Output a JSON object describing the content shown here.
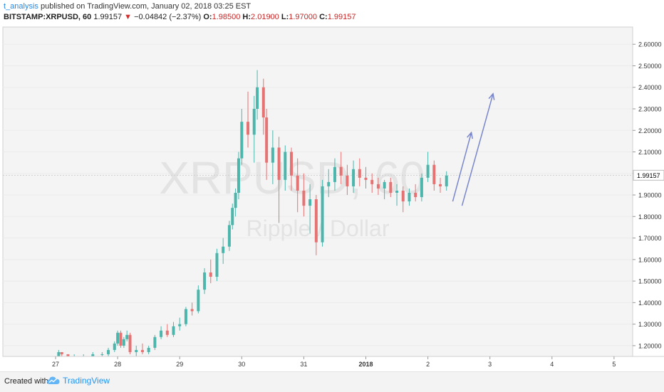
{
  "header": {
    "author": "t_analysis",
    "published": " published on TradingView.com, January 02, 2018 03:25 EST"
  },
  "ticker": {
    "symbol": "BITSTAMP:XRPUSD, 60",
    "last": "1.99157",
    "change": "−0.04842 (−2.37%)",
    "o_label": "O:",
    "o_value": "1.98500",
    "h_label": "H:",
    "h_value": "2.01900",
    "l_label": "L:",
    "l_value": "1.97000",
    "c_label": "C:",
    "c_value": "1.99157"
  },
  "footer": {
    "created_with": "Created with",
    "brand": "TradingView"
  },
  "colors": {
    "up": "#4db6ac",
    "down": "#e57373",
    "arrow": "#7986cb",
    "last_price_bg": "#ffffff"
  },
  "chart_data": {
    "type": "candlestick",
    "watermark_symbol": "XRPUSD, 60",
    "watermark_name": "Ripple / Dollar",
    "ylim": [
      1.15,
      2.68
    ],
    "y_ticks": [
      "1.20000",
      "1.30000",
      "1.40000",
      "1.50000",
      "1.60000",
      "1.70000",
      "1.80000",
      "1.90000",
      "2.00000",
      "2.10000",
      "2.20000",
      "2.30000",
      "2.40000",
      "2.50000",
      "2.60000"
    ],
    "last_price_label": "1.99157",
    "last_price": 1.99157,
    "x_ticks": [
      {
        "label": "27",
        "t": 0
      },
      {
        "label": "28",
        "t": 1
      },
      {
        "label": "29",
        "t": 2
      },
      {
        "label": "30",
        "t": 3
      },
      {
        "label": "31",
        "t": 4
      },
      {
        "label": "2018",
        "t": 5
      },
      {
        "label": "2",
        "t": 6
      },
      {
        "label": "3",
        "t": 7
      },
      {
        "label": "4",
        "t": 8
      },
      {
        "label": "5",
        "t": 9
      }
    ],
    "xlim": [
      -0.85,
      9.3
    ],
    "candles": [
      [
        0.05,
        1.15,
        1.18,
        1.14,
        1.17
      ],
      [
        0.1,
        1.17,
        1.17,
        1.15,
        1.16
      ],
      [
        0.2,
        1.16,
        1.16,
        1.13,
        1.14
      ],
      [
        0.3,
        1.14,
        1.16,
        1.13,
        1.15
      ],
      [
        0.45,
        1.15,
        1.16,
        1.14,
        1.15
      ],
      [
        0.6,
        1.15,
        1.17,
        1.14,
        1.16
      ],
      [
        0.75,
        1.16,
        1.17,
        1.15,
        1.16
      ],
      [
        0.85,
        1.16,
        1.19,
        1.15,
        1.18
      ],
      [
        0.95,
        1.18,
        1.22,
        1.17,
        1.21
      ],
      [
        1.0,
        1.21,
        1.27,
        1.2,
        1.26
      ],
      [
        1.05,
        1.26,
        1.27,
        1.19,
        1.2
      ],
      [
        1.1,
        1.2,
        1.24,
        1.19,
        1.23
      ],
      [
        1.15,
        1.23,
        1.27,
        1.22,
        1.25
      ],
      [
        1.2,
        1.25,
        1.26,
        1.16,
        1.17
      ],
      [
        1.3,
        1.17,
        1.2,
        1.15,
        1.18
      ],
      [
        1.4,
        1.18,
        1.21,
        1.16,
        1.17
      ],
      [
        1.5,
        1.17,
        1.2,
        1.16,
        1.19
      ],
      [
        1.6,
        1.19,
        1.25,
        1.18,
        1.24
      ],
      [
        1.7,
        1.24,
        1.29,
        1.23,
        1.27
      ],
      [
        1.8,
        1.27,
        1.3,
        1.24,
        1.25
      ],
      [
        1.9,
        1.25,
        1.31,
        1.24,
        1.29
      ],
      [
        2.0,
        1.29,
        1.33,
        1.27,
        1.3
      ],
      [
        2.1,
        1.3,
        1.38,
        1.29,
        1.37
      ],
      [
        2.2,
        1.37,
        1.4,
        1.34,
        1.36
      ],
      [
        2.3,
        1.36,
        1.48,
        1.35,
        1.46
      ],
      [
        2.4,
        1.46,
        1.56,
        1.44,
        1.54
      ],
      [
        2.5,
        1.54,
        1.6,
        1.49,
        1.52
      ],
      [
        2.6,
        1.52,
        1.65,
        1.5,
        1.63
      ],
      [
        2.7,
        1.63,
        1.7,
        1.58,
        1.66
      ],
      [
        2.8,
        1.66,
        1.78,
        1.64,
        1.76
      ],
      [
        2.85,
        1.76,
        1.86,
        1.74,
        1.84
      ],
      [
        2.9,
        1.84,
        1.93,
        1.8,
        1.91
      ],
      [
        2.95,
        1.91,
        2.1,
        1.88,
        2.07
      ],
      [
        3.0,
        2.07,
        2.3,
        2.04,
        2.24
      ],
      [
        3.1,
        2.24,
        2.38,
        2.12,
        2.18
      ],
      [
        3.2,
        2.18,
        2.36,
        2.05,
        2.3
      ],
      [
        3.25,
        2.3,
        2.48,
        2.25,
        2.4
      ],
      [
        3.35,
        2.4,
        2.44,
        2.18,
        2.26
      ],
      [
        3.4,
        2.26,
        2.3,
        1.97,
        2.05
      ],
      [
        3.5,
        2.05,
        2.2,
        1.95,
        2.12
      ],
      [
        3.6,
        2.12,
        2.17,
        1.77,
        1.97
      ],
      [
        3.7,
        1.97,
        2.13,
        1.92,
        2.1
      ],
      [
        3.8,
        2.1,
        2.12,
        1.92,
        1.99
      ],
      [
        3.9,
        1.99,
        2.07,
        1.82,
        1.92
      ],
      [
        4.0,
        1.92,
        2.0,
        1.8,
        1.85
      ],
      [
        4.1,
        1.85,
        1.95,
        1.72,
        1.88
      ],
      [
        4.2,
        1.88,
        1.9,
        1.62,
        1.68
      ],
      [
        4.3,
        1.68,
        1.97,
        1.66,
        1.94
      ],
      [
        4.4,
        1.94,
        2.02,
        1.89,
        1.96
      ],
      [
        4.5,
        1.96,
        2.07,
        1.92,
        2.03
      ],
      [
        4.6,
        2.03,
        2.1,
        1.95,
        1.99
      ],
      [
        4.7,
        1.99,
        2.04,
        1.9,
        1.94
      ],
      [
        4.8,
        1.94,
        2.06,
        1.91,
        2.02
      ],
      [
        4.9,
        2.02,
        2.07,
        1.94,
        1.98
      ],
      [
        5.0,
        1.98,
        2.03,
        1.93,
        1.97
      ],
      [
        5.1,
        1.97,
        2.0,
        1.91,
        1.95
      ],
      [
        5.2,
        1.95,
        1.98,
        1.9,
        1.93
      ],
      [
        5.3,
        1.93,
        1.97,
        1.88,
        1.96
      ],
      [
        5.4,
        1.96,
        1.98,
        1.89,
        1.91
      ],
      [
        5.5,
        1.91,
        1.95,
        1.85,
        1.92
      ],
      [
        5.6,
        1.92,
        1.94,
        1.82,
        1.87
      ],
      [
        5.7,
        1.87,
        1.93,
        1.85,
        1.91
      ],
      [
        5.8,
        1.91,
        1.95,
        1.87,
        1.89
      ],
      [
        5.9,
        1.89,
        2.0,
        1.87,
        1.98
      ],
      [
        6.0,
        1.98,
        2.1,
        1.96,
        2.04
      ],
      [
        6.1,
        2.04,
        2.06,
        1.92,
        1.95
      ],
      [
        6.2,
        1.95,
        1.98,
        1.91,
        1.94
      ],
      [
        6.3,
        1.94,
        2.01,
        1.92,
        1.99
      ]
    ],
    "annotations": [
      {
        "type": "arrow",
        "x0": 6.4,
        "y0": 1.87,
        "x1": 6.7,
        "y1": 2.19
      },
      {
        "type": "arrow",
        "x0": 6.55,
        "y0": 1.85,
        "x1": 7.05,
        "y1": 2.37
      }
    ]
  }
}
